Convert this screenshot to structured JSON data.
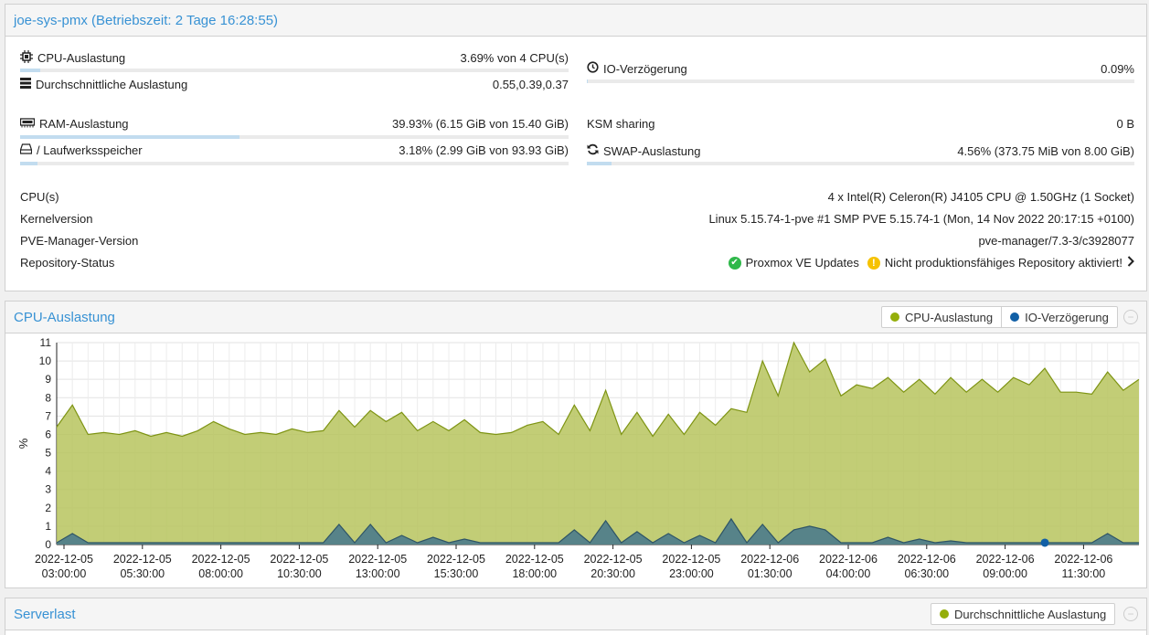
{
  "node": {
    "title": "joe-sys-pmx (Betriebszeit: 2 Tage 16:28:55)",
    "cpu": {
      "label": "CPU-Auslastung",
      "value": "3.69% von 4 CPU(s)",
      "fraction": 0.0369
    },
    "load": {
      "label": "Durchschnittliche Auslastung",
      "value": "0.55,0.39,0.37"
    },
    "io": {
      "label": "IO-Verzögerung",
      "value": "0.09%",
      "fraction": 0.0009
    },
    "ram": {
      "label": "RAM-Auslastung",
      "value": "39.93% (6.15 GiB von 15.40 GiB)",
      "fraction": 0.3993
    },
    "ksm": {
      "label": "KSM sharing",
      "value": "0 B"
    },
    "disk": {
      "label": "/ Laufwerksspeicher",
      "value": "3.18% (2.99 GiB von 93.93 GiB)",
      "fraction": 0.0318
    },
    "swap": {
      "label": "SWAP-Auslastung",
      "value": "4.56% (373.75 MiB von 8.00 GiB)",
      "fraction": 0.0456
    },
    "info": [
      {
        "label": "CPU(s)",
        "value": "4 x Intel(R) Celeron(R) J4105 CPU @ 1.50GHz (1 Socket)"
      },
      {
        "label": "Kernelversion",
        "value": "Linux 5.15.74-1-pve #1 SMP PVE 5.15.74-1 (Mon, 14 Nov 2022 20:17:15 +0100)"
      },
      {
        "label": "PVE-Manager-Version",
        "value": "pve-manager/7.3-3/c3928077"
      }
    ],
    "repo": {
      "label": "Repository-Status",
      "ok_text": "Proxmox VE Updates",
      "warn_text": "Nicht produktionsfähiges Repository aktiviert!"
    }
  },
  "cpu_panel": {
    "title": "CPU-Auslastung",
    "legend": [
      "CPU-Auslastung",
      "IO-Verzögerung"
    ]
  },
  "load_panel": {
    "title": "Serverlast",
    "legend": [
      "Durchschnittliche Auslastung"
    ]
  },
  "colors": {
    "cpu": "#94ae0a",
    "io": "#115fa6",
    "accent": "#3892d4"
  },
  "chart_data": {
    "type": "area",
    "ylabel": "%",
    "ylim": [
      0,
      11
    ],
    "yticks": [
      0,
      1,
      2,
      3,
      4,
      5,
      6,
      7,
      8,
      9,
      10,
      11
    ],
    "grid": true,
    "legend_position": "top-right",
    "x_tick_labels": [
      [
        "2022-12-05",
        "03:00:00"
      ],
      [
        "2022-12-05",
        "05:30:00"
      ],
      [
        "2022-12-05",
        "08:00:00"
      ],
      [
        "2022-12-05",
        "10:30:00"
      ],
      [
        "2022-12-05",
        "13:00:00"
      ],
      [
        "2022-12-05",
        "15:30:00"
      ],
      [
        "2022-12-05",
        "18:00:00"
      ],
      [
        "2022-12-05",
        "20:30:00"
      ],
      [
        "2022-12-05",
        "23:00:00"
      ],
      [
        "2022-12-06",
        "01:30:00"
      ],
      [
        "2022-12-06",
        "04:00:00"
      ],
      [
        "2022-12-06",
        "06:30:00"
      ],
      [
        "2022-12-06",
        "09:00:00"
      ],
      [
        "2022-12-06",
        "11:30:00"
      ]
    ],
    "series": [
      {
        "name": "CPU-Auslastung",
        "values": [
          6.4,
          7.6,
          6.0,
          6.1,
          6.0,
          6.2,
          5.9,
          6.1,
          5.9,
          6.2,
          6.7,
          6.3,
          6.0,
          6.1,
          6.0,
          6.3,
          6.1,
          6.2,
          7.3,
          6.4,
          7.3,
          6.7,
          7.2,
          6.2,
          6.7,
          6.2,
          6.8,
          6.1,
          6.0,
          6.1,
          6.5,
          6.7,
          6.0,
          7.6,
          6.2,
          8.4,
          6.0,
          7.2,
          5.9,
          7.1,
          6.0,
          7.2,
          6.5,
          7.4,
          7.2,
          10.0,
          8.1,
          11.0,
          9.4,
          10.1,
          8.1,
          8.7,
          8.5,
          9.1,
          8.3,
          9.0,
          8.2,
          9.1,
          8.3,
          9.0,
          8.3,
          9.1,
          8.7,
          9.6,
          8.3,
          8.3,
          8.2,
          9.4,
          8.4,
          9.0
        ]
      },
      {
        "name": "IO-Verzögerung",
        "values": [
          0.1,
          0.6,
          0.1,
          0.1,
          0.1,
          0.1,
          0.1,
          0.1,
          0.1,
          0.1,
          0.1,
          0.1,
          0.1,
          0.1,
          0.1,
          0.1,
          0.1,
          0.1,
          1.1,
          0.1,
          1.1,
          0.1,
          0.5,
          0.1,
          0.4,
          0.1,
          0.3,
          0.1,
          0.1,
          0.1,
          0.1,
          0.1,
          0.1,
          0.8,
          0.1,
          1.3,
          0.1,
          0.7,
          0.1,
          0.6,
          0.1,
          0.5,
          0.1,
          1.4,
          0.1,
          1.1,
          0.1,
          0.8,
          1.0,
          0.8,
          0.1,
          0.1,
          0.1,
          0.4,
          0.1,
          0.3,
          0.1,
          0.2,
          0.1,
          0.1,
          0.1,
          0.1,
          0.1,
          0.1,
          0.1,
          0.1,
          0.1,
          0.6,
          0.1,
          0.1
        ]
      }
    ]
  }
}
